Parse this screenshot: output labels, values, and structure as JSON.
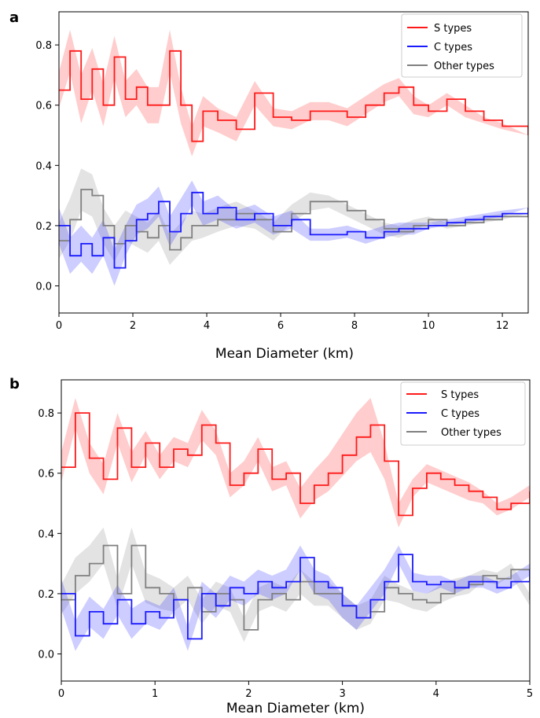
{
  "panels": [
    {
      "label": "a",
      "xlabel": "Mean Diameter (km)",
      "xlim": [
        0,
        12.7
      ],
      "ylim": [
        -0.09,
        0.91
      ],
      "xticks": [
        0,
        2,
        4,
        6,
        8,
        10,
        12
      ],
      "yticks": [
        0.0,
        0.2,
        0.4,
        0.6,
        0.8
      ],
      "legend": [
        "S types",
        "C types",
        "Other types"
      ]
    },
    {
      "label": "b",
      "xlabel": "Mean Diameter (km)",
      "xlim": [
        0,
        5
      ],
      "ylim": [
        -0.09,
        0.91
      ],
      "xticks": [
        0,
        1,
        2,
        3,
        4,
        5
      ],
      "yticks": [
        0.0,
        0.2,
        0.4,
        0.6,
        0.8
      ],
      "legend": [
        "S types",
        "C types",
        "Other types"
      ]
    }
  ],
  "colors": {
    "s": "#ff1a1a",
    "c": "#1a1aff",
    "other": "#808080"
  },
  "chart_data": [
    {
      "type": "line",
      "panel": "a",
      "xlabel": "Mean Diameter (km)",
      "ylabel": "",
      "xlim": [
        0,
        12.7
      ],
      "ylim": [
        -0.09,
        0.91
      ],
      "legend_position": "top-right",
      "series": [
        {
          "name": "S types",
          "x": [
            0,
            0.3,
            0.6,
            0.9,
            1.2,
            1.5,
            1.8,
            2.1,
            2.4,
            2.7,
            3.0,
            3.3,
            3.6,
            3.9,
            4.3,
            4.8,
            5.3,
            5.8,
            6.3,
            6.8,
            7.3,
            7.8,
            8.3,
            8.8,
            9.2,
            9.6,
            10.0,
            10.5,
            11.0,
            11.5,
            12.0,
            12.7
          ],
          "y": [
            0.65,
            0.78,
            0.62,
            0.72,
            0.6,
            0.76,
            0.62,
            0.66,
            0.6,
            0.6,
            0.78,
            0.6,
            0.48,
            0.58,
            0.55,
            0.52,
            0.64,
            0.56,
            0.55,
            0.58,
            0.58,
            0.56,
            0.6,
            0.64,
            0.66,
            0.6,
            0.58,
            0.62,
            0.58,
            0.55,
            0.53,
            0.5
          ],
          "band": [
            0.06,
            0.07,
            0.08,
            0.07,
            0.07,
            0.07,
            0.06,
            0.06,
            0.06,
            0.06,
            0.07,
            0.06,
            0.05,
            0.05,
            0.04,
            0.04,
            0.04,
            0.03,
            0.03,
            0.03,
            0.03,
            0.03,
            0.03,
            0.03,
            0.03,
            0.03,
            0.02,
            0.02,
            0.02,
            0.01,
            0.01,
            0.0
          ]
        },
        {
          "name": "C types",
          "x": [
            0,
            0.3,
            0.6,
            0.9,
            1.2,
            1.5,
            1.8,
            2.1,
            2.4,
            2.7,
            3.0,
            3.3,
            3.6,
            3.9,
            4.3,
            4.8,
            5.3,
            5.8,
            6.3,
            6.8,
            7.3,
            7.8,
            8.3,
            8.8,
            9.2,
            9.6,
            10.0,
            10.5,
            11.0,
            11.5,
            12.0,
            12.7
          ],
          "y": [
            0.2,
            0.1,
            0.14,
            0.1,
            0.16,
            0.06,
            0.15,
            0.22,
            0.24,
            0.28,
            0.18,
            0.24,
            0.31,
            0.24,
            0.26,
            0.22,
            0.24,
            0.2,
            0.22,
            0.17,
            0.17,
            0.18,
            0.16,
            0.18,
            0.19,
            0.19,
            0.2,
            0.21,
            0.22,
            0.23,
            0.24,
            0.26
          ],
          "band": [
            0.06,
            0.06,
            0.06,
            0.06,
            0.06,
            0.06,
            0.05,
            0.05,
            0.05,
            0.05,
            0.05,
            0.05,
            0.04,
            0.04,
            0.04,
            0.03,
            0.03,
            0.03,
            0.03,
            0.02,
            0.02,
            0.02,
            0.02,
            0.02,
            0.02,
            0.02,
            0.01,
            0.01,
            0.01,
            0.01,
            0.01,
            0.0
          ]
        },
        {
          "name": "Other types",
          "x": [
            0,
            0.3,
            0.6,
            0.9,
            1.2,
            1.5,
            1.8,
            2.1,
            2.4,
            2.7,
            3.0,
            3.3,
            3.6,
            3.9,
            4.3,
            4.8,
            5.3,
            5.8,
            6.3,
            6.8,
            7.3,
            7.8,
            8.3,
            8.8,
            9.2,
            9.6,
            10.0,
            10.5,
            11.0,
            11.5,
            12.0,
            12.7
          ],
          "y": [
            0.15,
            0.22,
            0.32,
            0.3,
            0.2,
            0.14,
            0.2,
            0.18,
            0.16,
            0.2,
            0.12,
            0.16,
            0.2,
            0.2,
            0.22,
            0.24,
            0.22,
            0.18,
            0.24,
            0.28,
            0.28,
            0.25,
            0.22,
            0.19,
            0.18,
            0.2,
            0.22,
            0.2,
            0.21,
            0.22,
            0.23,
            0.24
          ],
          "band": [
            0.06,
            0.07,
            0.07,
            0.07,
            0.06,
            0.06,
            0.05,
            0.05,
            0.05,
            0.05,
            0.05,
            0.05,
            0.05,
            0.04,
            0.04,
            0.04,
            0.03,
            0.03,
            0.03,
            0.03,
            0.02,
            0.02,
            0.02,
            0.02,
            0.02,
            0.02,
            0.01,
            0.01,
            0.01,
            0.01,
            0.01,
            0.0
          ]
        }
      ]
    },
    {
      "type": "line",
      "panel": "b",
      "xlabel": "Mean Diameter (km)",
      "ylabel": "",
      "xlim": [
        0,
        5
      ],
      "ylim": [
        -0.09,
        0.91
      ],
      "legend_position": "top-right",
      "series": [
        {
          "name": "S types",
          "x": [
            0,
            0.15,
            0.3,
            0.45,
            0.6,
            0.75,
            0.9,
            1.05,
            1.2,
            1.35,
            1.5,
            1.65,
            1.8,
            1.95,
            2.1,
            2.25,
            2.4,
            2.55,
            2.7,
            2.85,
            3.0,
            3.15,
            3.3,
            3.45,
            3.6,
            3.75,
            3.9,
            4.05,
            4.2,
            4.35,
            4.5,
            4.65,
            4.8,
            5.0
          ],
          "y": [
            0.62,
            0.8,
            0.65,
            0.58,
            0.75,
            0.62,
            0.7,
            0.62,
            0.68,
            0.66,
            0.76,
            0.7,
            0.56,
            0.6,
            0.68,
            0.58,
            0.6,
            0.5,
            0.56,
            0.6,
            0.66,
            0.72,
            0.76,
            0.64,
            0.46,
            0.55,
            0.6,
            0.58,
            0.56,
            0.54,
            0.52,
            0.48,
            0.5,
            0.54
          ],
          "band": [
            0.05,
            0.05,
            0.05,
            0.05,
            0.05,
            0.05,
            0.04,
            0.04,
            0.04,
            0.04,
            0.05,
            0.04,
            0.04,
            0.04,
            0.04,
            0.04,
            0.04,
            0.05,
            0.05,
            0.06,
            0.07,
            0.08,
            0.09,
            0.06,
            0.04,
            0.03,
            0.03,
            0.03,
            0.03,
            0.03,
            0.02,
            0.02,
            0.02,
            0.02
          ]
        },
        {
          "name": "C types",
          "x": [
            0,
            0.15,
            0.3,
            0.45,
            0.6,
            0.75,
            0.9,
            1.05,
            1.2,
            1.35,
            1.5,
            1.65,
            1.8,
            1.95,
            2.1,
            2.25,
            2.4,
            2.55,
            2.7,
            2.85,
            3.0,
            3.15,
            3.3,
            3.45,
            3.6,
            3.75,
            3.9,
            4.05,
            4.2,
            4.35,
            4.5,
            4.65,
            4.8,
            5.0
          ],
          "y": [
            0.2,
            0.06,
            0.14,
            0.1,
            0.18,
            0.1,
            0.14,
            0.12,
            0.18,
            0.05,
            0.2,
            0.16,
            0.22,
            0.2,
            0.24,
            0.22,
            0.24,
            0.32,
            0.24,
            0.22,
            0.16,
            0.12,
            0.18,
            0.24,
            0.33,
            0.24,
            0.23,
            0.24,
            0.22,
            0.24,
            0.24,
            0.22,
            0.24,
            0.28
          ],
          "band": [
            0.05,
            0.05,
            0.05,
            0.05,
            0.05,
            0.05,
            0.04,
            0.04,
            0.04,
            0.04,
            0.04,
            0.04,
            0.04,
            0.04,
            0.04,
            0.04,
            0.04,
            0.04,
            0.04,
            0.04,
            0.04,
            0.04,
            0.04,
            0.04,
            0.03,
            0.03,
            0.03,
            0.02,
            0.02,
            0.02,
            0.02,
            0.02,
            0.02,
            0.02
          ]
        },
        {
          "name": "Other types",
          "x": [
            0,
            0.15,
            0.3,
            0.45,
            0.6,
            0.75,
            0.9,
            1.05,
            1.2,
            1.35,
            1.5,
            1.65,
            1.8,
            1.95,
            2.1,
            2.25,
            2.4,
            2.55,
            2.7,
            2.85,
            3.0,
            3.15,
            3.3,
            3.45,
            3.6,
            3.75,
            3.9,
            4.05,
            4.2,
            4.35,
            4.5,
            4.65,
            4.8,
            5.0
          ],
          "y": [
            0.18,
            0.26,
            0.3,
            0.36,
            0.2,
            0.36,
            0.22,
            0.2,
            0.18,
            0.22,
            0.14,
            0.2,
            0.18,
            0.08,
            0.18,
            0.2,
            0.18,
            0.24,
            0.2,
            0.2,
            0.16,
            0.12,
            0.14,
            0.22,
            0.2,
            0.18,
            0.17,
            0.2,
            0.22,
            0.23,
            0.26,
            0.25,
            0.28,
            0.18
          ],
          "band": [
            0.05,
            0.06,
            0.06,
            0.06,
            0.05,
            0.06,
            0.05,
            0.05,
            0.04,
            0.04,
            0.04,
            0.04,
            0.04,
            0.04,
            0.04,
            0.04,
            0.04,
            0.04,
            0.04,
            0.04,
            0.04,
            0.04,
            0.04,
            0.04,
            0.03,
            0.03,
            0.03,
            0.03,
            0.03,
            0.03,
            0.02,
            0.02,
            0.02,
            0.02
          ]
        }
      ]
    }
  ]
}
